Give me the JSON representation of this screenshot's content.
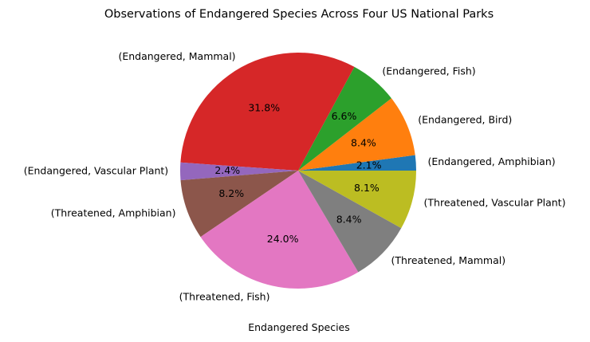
{
  "chart_data": {
    "type": "pie",
    "title": "Observations of Endangered Species Across Four US National Parks",
    "xlabel": "Endangered Species",
    "ylabel": "",
    "start_angle_deg": 0,
    "direction": "counterclockwise",
    "categories": [
      "(Endangered, Amphibian)",
      "(Endangered, Bird)",
      "(Endangered, Fish)",
      "(Endangered, Mammal)",
      "(Endangered, Vascular Plant)",
      "(Threatened, Amphibian)",
      "(Threatened, Fish)",
      "(Threatened, Mammal)",
      "(Threatened, Vascular Plant)"
    ],
    "values": [
      2.1,
      8.4,
      6.6,
      31.8,
      2.4,
      8.2,
      24.0,
      8.4,
      8.1
    ],
    "percent_labels": [
      "2.1%",
      "8.4%",
      "6.6%",
      "31.8%",
      "2.4%",
      "8.2%",
      "24.0%",
      "8.4%",
      "8.1%"
    ],
    "colors": [
      "#1f77b4",
      "#ff7f0e",
      "#2ca02c",
      "#d62728",
      "#9467bd",
      "#8c564b",
      "#e377c2",
      "#7f7f7f",
      "#bcbd22"
    ]
  }
}
